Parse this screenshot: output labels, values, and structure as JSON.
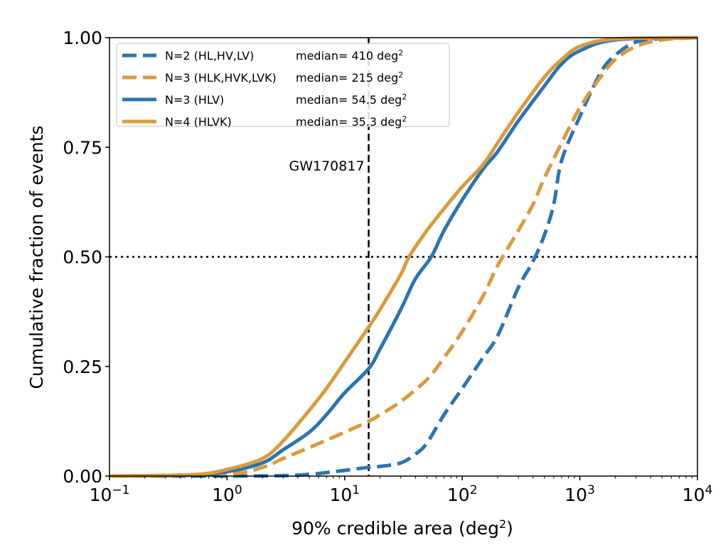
{
  "chart_data": {
    "type": "line",
    "xlabel": "90% credible area (deg",
    "xlabel_sup": "2",
    "xlabel_end": ")",
    "ylabel": "Cumulative fraction of events",
    "xscale": "log",
    "xlim": [
      0.1,
      10000
    ],
    "ylim": [
      0,
      1
    ],
    "xticks": [
      {
        "value": 0.1,
        "base": "10",
        "exp": "−1"
      },
      {
        "value": 1,
        "base": "10",
        "exp": "0"
      },
      {
        "value": 10,
        "base": "10",
        "exp": "1"
      },
      {
        "value": 100,
        "base": "10",
        "exp": "2"
      },
      {
        "value": 1000,
        "base": "10",
        "exp": "3"
      },
      {
        "value": 10000,
        "base": "10",
        "exp": "4"
      }
    ],
    "yticks": [
      {
        "value": 0.0,
        "label": "0.00"
      },
      {
        "value": 0.25,
        "label": "0.25"
      },
      {
        "value": 0.5,
        "label": "0.50"
      },
      {
        "value": 0.75,
        "label": "0.75"
      },
      {
        "value": 1.0,
        "label": "1.00"
      }
    ],
    "legend_position": "top-left",
    "series": [
      {
        "name": "N=2 (HL,HV,LV)",
        "median_text": "median=  410 deg",
        "color": "#2a75b3",
        "style": "dashed",
        "points": [
          [
            0.1,
            0
          ],
          [
            1,
            0
          ],
          [
            3,
            0.001
          ],
          [
            5,
            0.004
          ],
          [
            7,
            0.008
          ],
          [
            10,
            0.013
          ],
          [
            16,
            0.02
          ],
          [
            20,
            0.022
          ],
          [
            30,
            0.03
          ],
          [
            40,
            0.05
          ],
          [
            50,
            0.075
          ],
          [
            70,
            0.14
          ],
          [
            100,
            0.2
          ],
          [
            150,
            0.27
          ],
          [
            200,
            0.32
          ],
          [
            300,
            0.43
          ],
          [
            400,
            0.49
          ],
          [
            500,
            0.55
          ],
          [
            600,
            0.62
          ],
          [
            700,
            0.72
          ],
          [
            1000,
            0.82
          ],
          [
            1500,
            0.92
          ],
          [
            2000,
            0.96
          ],
          [
            3000,
            0.99
          ],
          [
            5000,
            0.998
          ],
          [
            10000,
            1
          ]
        ]
      },
      {
        "name": "N=3 (HLK,HVK,LVK)",
        "median_text": "median=  215 deg",
        "color": "#dc9a3a",
        "style": "dashed",
        "points": [
          [
            0.1,
            0
          ],
          [
            1,
            0.005
          ],
          [
            2,
            0.02
          ],
          [
            3,
            0.04
          ],
          [
            5,
            0.065
          ],
          [
            10,
            0.1
          ],
          [
            16,
            0.125
          ],
          [
            20,
            0.14
          ],
          [
            30,
            0.17
          ],
          [
            50,
            0.22
          ],
          [
            70,
            0.27
          ],
          [
            100,
            0.33
          ],
          [
            150,
            0.41
          ],
          [
            200,
            0.48
          ],
          [
            300,
            0.56
          ],
          [
            400,
            0.62
          ],
          [
            500,
            0.68
          ],
          [
            700,
            0.76
          ],
          [
            1000,
            0.84
          ],
          [
            1500,
            0.91
          ],
          [
            2000,
            0.95
          ],
          [
            3000,
            0.98
          ],
          [
            5000,
            0.995
          ],
          [
            10000,
            1
          ]
        ]
      },
      {
        "name": "N=3 (HLV)",
        "median_text": "median= 54.5 deg",
        "color": "#2a75b3",
        "style": "solid",
        "points": [
          [
            0.1,
            0
          ],
          [
            0.5,
            0.002
          ],
          [
            1,
            0.01
          ],
          [
            2,
            0.03
          ],
          [
            3,
            0.06
          ],
          [
            5,
            0.1
          ],
          [
            7,
            0.14
          ],
          [
            10,
            0.19
          ],
          [
            16,
            0.245
          ],
          [
            20,
            0.29
          ],
          [
            30,
            0.38
          ],
          [
            40,
            0.45
          ],
          [
            54.5,
            0.5
          ],
          [
            70,
            0.56
          ],
          [
            100,
            0.63
          ],
          [
            150,
            0.7
          ],
          [
            200,
            0.74
          ],
          [
            300,
            0.81
          ],
          [
            500,
            0.89
          ],
          [
            700,
            0.94
          ],
          [
            1000,
            0.97
          ],
          [
            2000,
            0.995
          ],
          [
            10000,
            1
          ]
        ]
      },
      {
        "name": "N=4 (HLVK)",
        "median_text": "median= 35.3 deg",
        "color": "#dc9a3a",
        "style": "solid",
        "points": [
          [
            0.1,
            0
          ],
          [
            0.5,
            0.003
          ],
          [
            1,
            0.015
          ],
          [
            2,
            0.04
          ],
          [
            3,
            0.08
          ],
          [
            5,
            0.15
          ],
          [
            7,
            0.2
          ],
          [
            10,
            0.26
          ],
          [
            16,
            0.34
          ],
          [
            20,
            0.38
          ],
          [
            30,
            0.46
          ],
          [
            35.3,
            0.5
          ],
          [
            50,
            0.56
          ],
          [
            70,
            0.61
          ],
          [
            100,
            0.66
          ],
          [
            150,
            0.71
          ],
          [
            200,
            0.76
          ],
          [
            300,
            0.83
          ],
          [
            500,
            0.91
          ],
          [
            700,
            0.95
          ],
          [
            1000,
            0.98
          ],
          [
            2000,
            0.997
          ],
          [
            10000,
            1
          ]
        ]
      }
    ],
    "median_sup": "2",
    "annotations": [
      {
        "type": "vline",
        "x": 16,
        "style": "dashed",
        "color": "#000000",
        "label": "GW170817"
      },
      {
        "type": "hline",
        "y": 0.5,
        "style": "dotted",
        "color": "#000000"
      }
    ]
  }
}
